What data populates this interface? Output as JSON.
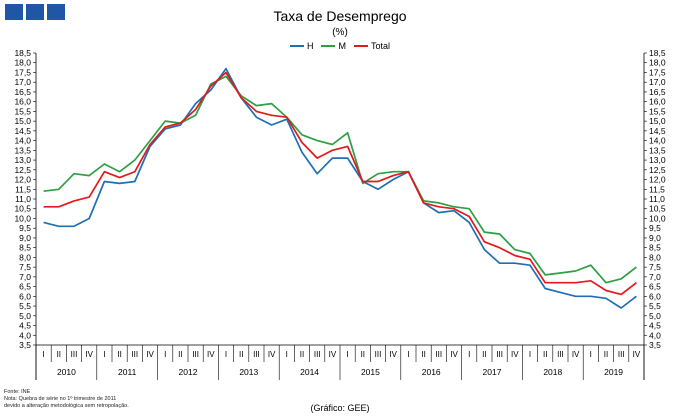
{
  "header": {
    "logo_name": "logo-squares"
  },
  "chart_data": {
    "type": "line",
    "title": "Taxa de Desemprego",
    "subtitle": "(%)",
    "ylim": [
      3.5,
      18.5
    ],
    "y_step": 0.5,
    "quarter_labels": [
      "I",
      "II",
      "III",
      "IV"
    ],
    "years": [
      "2010",
      "2011",
      "2012",
      "2013",
      "2014",
      "2015",
      "2016",
      "2017",
      "2018",
      "2019"
    ],
    "series": [
      {
        "name": "H",
        "color": "#1f6fb4",
        "values": [
          9.8,
          9.6,
          9.6,
          10.0,
          11.9,
          11.8,
          11.9,
          13.7,
          14.6,
          14.8,
          15.9,
          16.6,
          17.7,
          16.2,
          15.2,
          14.8,
          15.1,
          13.4,
          12.3,
          13.1,
          13.1,
          11.9,
          11.5,
          12.0,
          12.4,
          10.8,
          10.3,
          10.4,
          9.8,
          8.4,
          7.7,
          7.7,
          7.6,
          6.4,
          6.2,
          6.0,
          6.0,
          5.9,
          5.4,
          6.0
        ]
      },
      {
        "name": "M",
        "color": "#2ca043",
        "values": [
          11.4,
          11.5,
          12.3,
          12.2,
          12.8,
          12.4,
          13.0,
          14.0,
          15.0,
          14.9,
          15.3,
          16.9,
          17.3,
          16.3,
          15.8,
          15.9,
          15.2,
          14.3,
          14.0,
          13.8,
          14.4,
          11.8,
          12.3,
          12.4,
          12.4,
          10.9,
          10.8,
          10.6,
          10.5,
          9.3,
          9.2,
          8.4,
          8.2,
          7.1,
          7.2,
          7.3,
          7.6,
          6.7,
          6.9,
          7.5
        ]
      },
      {
        "name": "Total",
        "color": "#e31a1c",
        "values": [
          10.6,
          10.6,
          10.9,
          11.1,
          12.4,
          12.1,
          12.4,
          13.8,
          14.7,
          14.9,
          15.6,
          16.8,
          17.5,
          16.2,
          15.5,
          15.3,
          15.2,
          13.9,
          13.1,
          13.5,
          13.7,
          11.9,
          11.9,
          12.2,
          12.4,
          10.8,
          10.6,
          10.5,
          10.1,
          8.8,
          8.5,
          8.1,
          7.9,
          6.7,
          6.7,
          6.7,
          6.8,
          6.3,
          6.1,
          6.7
        ]
      }
    ]
  },
  "notes": {
    "line1": "Fonte: INE",
    "line2": "Nota: Quebra de série no 1º trimestre de 2011",
    "line3": "devido a alteração metodológica sem retropolação."
  },
  "source": "(Gráfico: GEE)"
}
